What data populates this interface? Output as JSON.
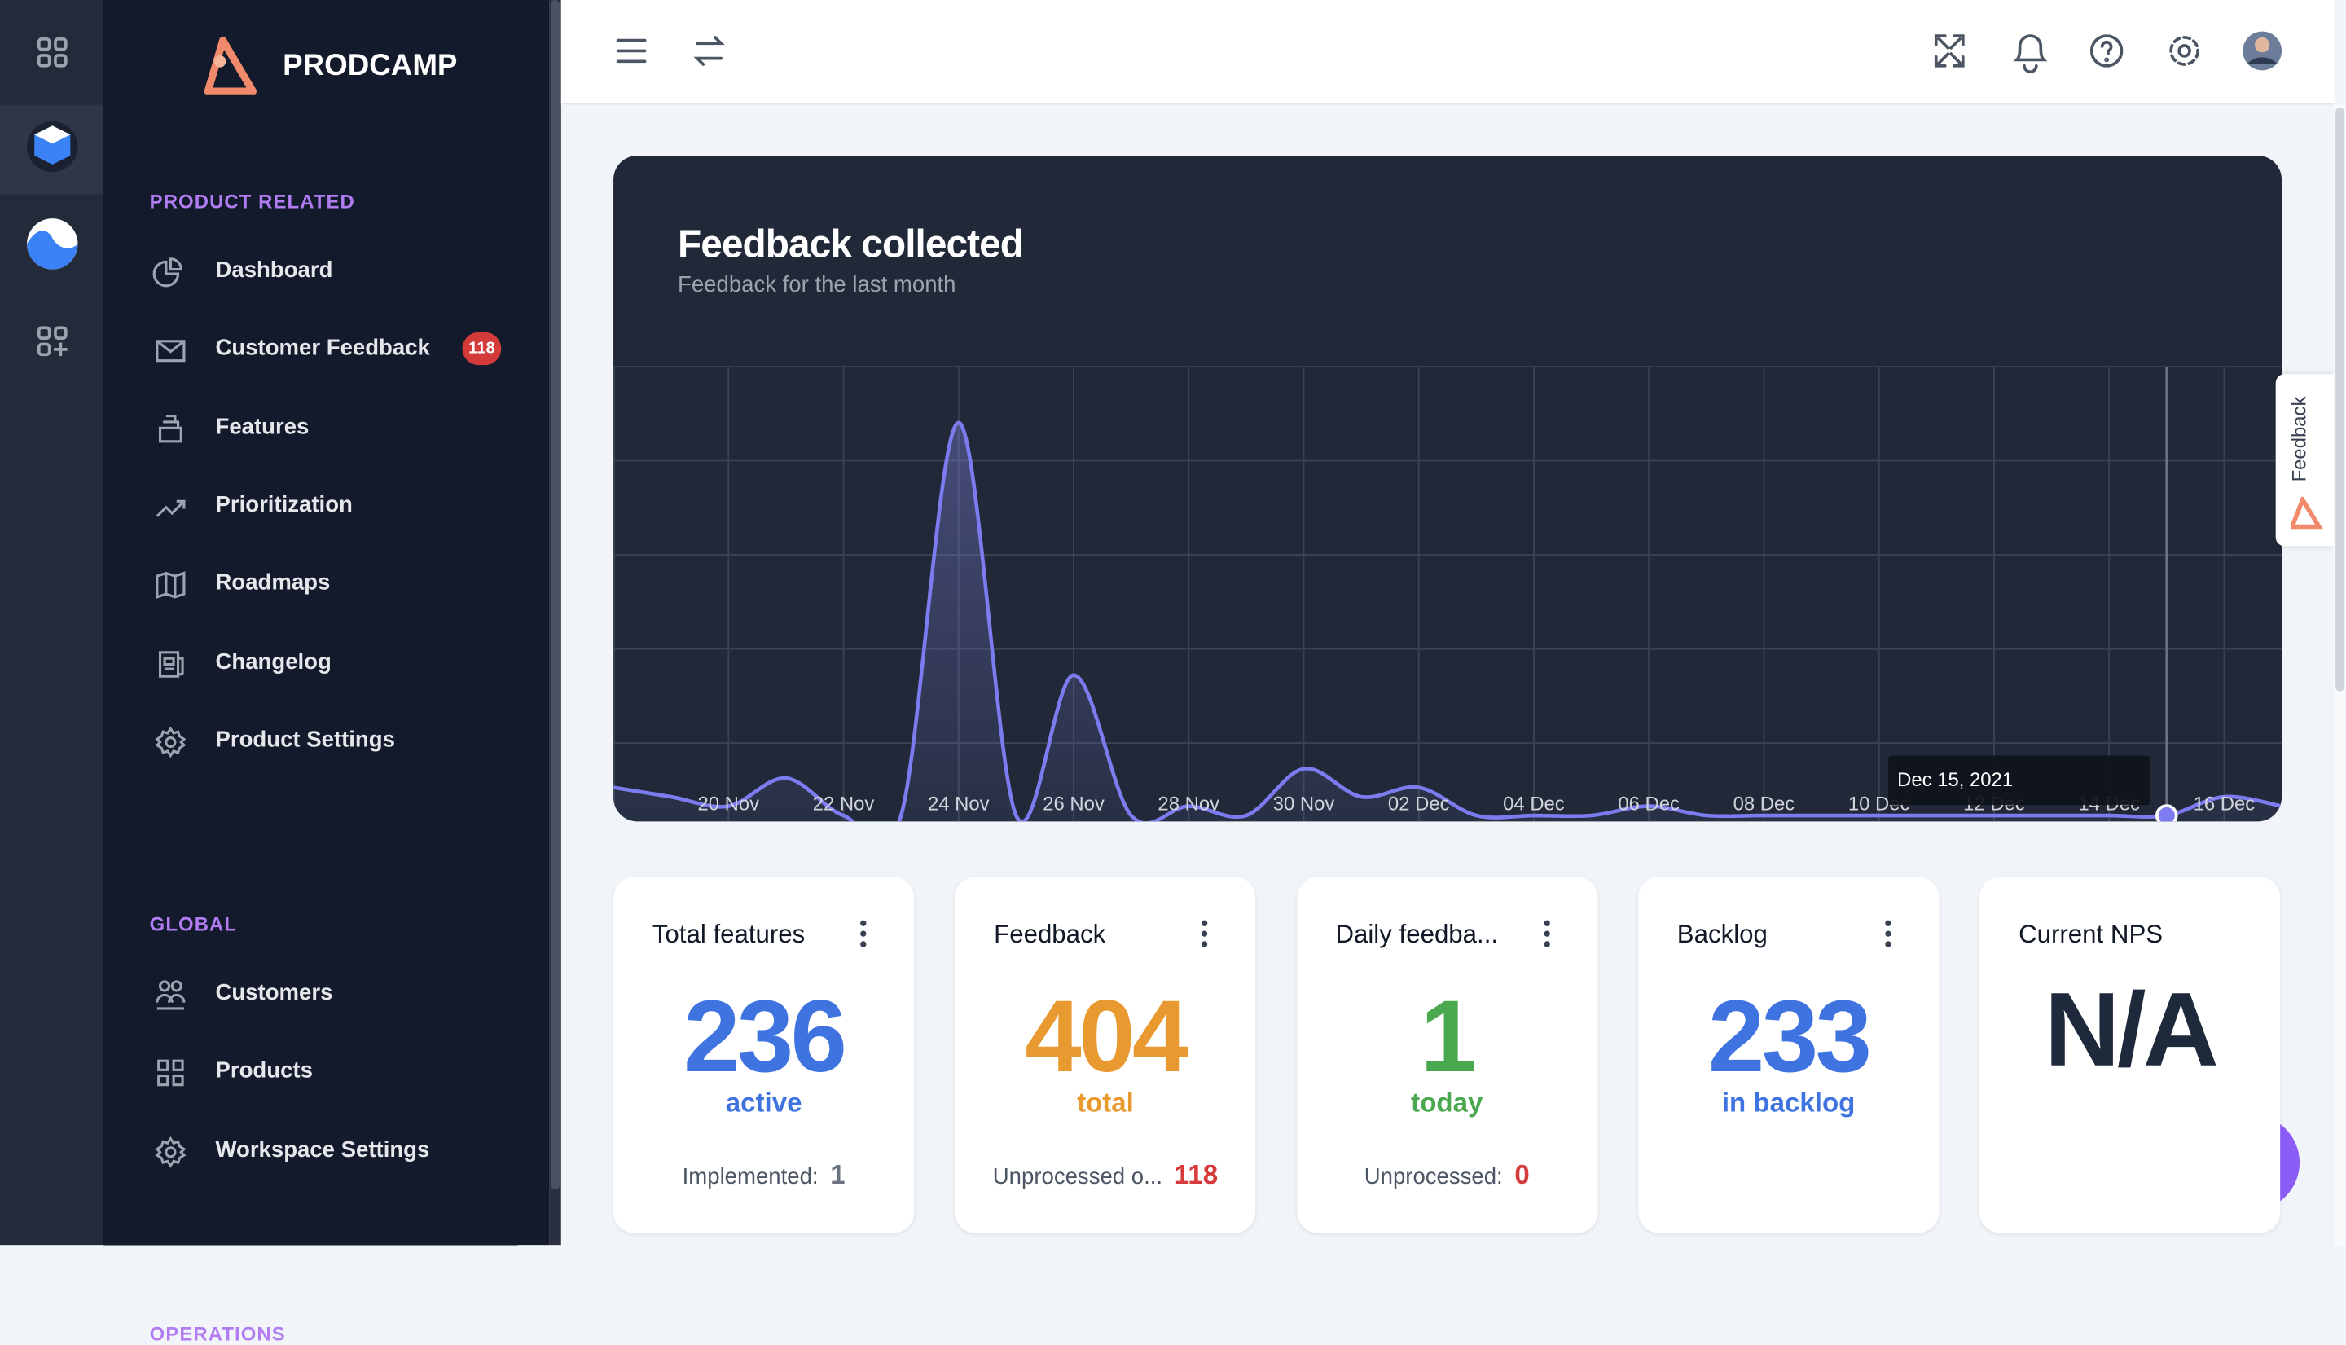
{
  "brand": "PRODCAMP",
  "nav": [
    {
      "title": "PRODUCT RELATED",
      "items": [
        {
          "label": "Dashboard"
        },
        {
          "label": "Customer Feedback",
          "badge": 118
        },
        {
          "label": "Features"
        },
        {
          "label": "Prioritization"
        },
        {
          "label": "Roadmaps"
        },
        {
          "label": "Changelog"
        },
        {
          "label": "Product Settings"
        }
      ]
    },
    {
      "title": "GLOBAL",
      "items": [
        {
          "label": "Customers"
        },
        {
          "label": "Products"
        },
        {
          "label": "Workspace Settings"
        }
      ]
    },
    {
      "title": "OPERATIONS",
      "items": []
    }
  ],
  "chart_data": {
    "type": "line",
    "title": "Feedback collected",
    "subtitle": "Feedback for the last month",
    "categories": [
      null,
      null,
      "20 Nov",
      null,
      "22 Nov",
      null,
      "24 Nov",
      null,
      "26 Nov",
      null,
      "28 Nov",
      null,
      "30 Nov",
      null,
      "02 Dec",
      null,
      "04 Dec",
      null,
      "06 Dec",
      null,
      "08 Dec",
      null,
      "10 Dec",
      null,
      "12 Dec",
      null,
      "14 Dec",
      null,
      "16 Dec",
      null
    ],
    "series": [
      {
        "color": "#7c7cf0",
        "values": [
          3,
          2,
          1,
          4,
          0,
          0,
          42,
          0,
          15,
          0,
          1,
          0,
          5,
          2,
          3,
          0,
          0,
          0,
          1,
          0,
          0,
          0,
          0,
          0,
          0,
          0,
          0,
          0,
          2,
          1
        ]
      }
    ],
    "ylim": [
      0,
      48
    ],
    "grid": true,
    "tooltip": {
      "index": 27,
      "label": "Dec 15, 2021"
    }
  },
  "cards": [
    {
      "title": "Total features",
      "value": 236,
      "caption": "active",
      "color": "#3f73e0",
      "footer_label": "Implemented:",
      "footer_value": 1,
      "footer_color": "#6b7280"
    },
    {
      "title": "Feedback",
      "value": 404,
      "caption": "total",
      "color": "#e8992f",
      "footer_label": "Unprocessed o...",
      "footer_value": 118,
      "footer_color": "#d63a3a"
    },
    {
      "title": "Daily feedba...",
      "value": 1,
      "caption": "today",
      "color": "#4aa84f",
      "footer_label": "Unprocessed:",
      "footer_value": 0,
      "footer_color": "#d63a3a"
    },
    {
      "title": "Backlog",
      "value": 233,
      "caption": "in backlog",
      "color": "#3f73e0"
    },
    {
      "title": "Current NPS",
      "value": "N/A",
      "color": "#1e293b"
    }
  ],
  "feedback_tab": "Feedback"
}
